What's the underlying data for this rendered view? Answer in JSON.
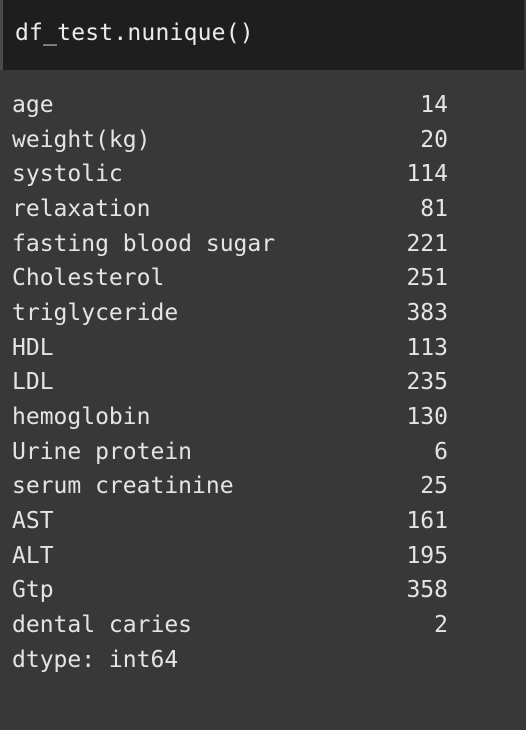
{
  "input": {
    "code": "df_test.nunique()"
  },
  "output": {
    "rows": [
      {
        "label": "age",
        "value": "14"
      },
      {
        "label": "weight(kg)",
        "value": "20"
      },
      {
        "label": "systolic",
        "value": "114"
      },
      {
        "label": "relaxation",
        "value": "81"
      },
      {
        "label": "fasting blood sugar",
        "value": "221"
      },
      {
        "label": "Cholesterol",
        "value": "251"
      },
      {
        "label": "triglyceride",
        "value": "383"
      },
      {
        "label": "HDL",
        "value": "113"
      },
      {
        "label": "LDL",
        "value": "235"
      },
      {
        "label": "hemoglobin",
        "value": "130"
      },
      {
        "label": "Urine protein",
        "value": "6"
      },
      {
        "label": "serum creatinine",
        "value": "25"
      },
      {
        "label": "AST",
        "value": "161"
      },
      {
        "label": "ALT",
        "value": "195"
      },
      {
        "label": "Gtp",
        "value": "358"
      },
      {
        "label": "dental caries",
        "value": "2"
      }
    ],
    "dtype": "dtype: int64"
  }
}
